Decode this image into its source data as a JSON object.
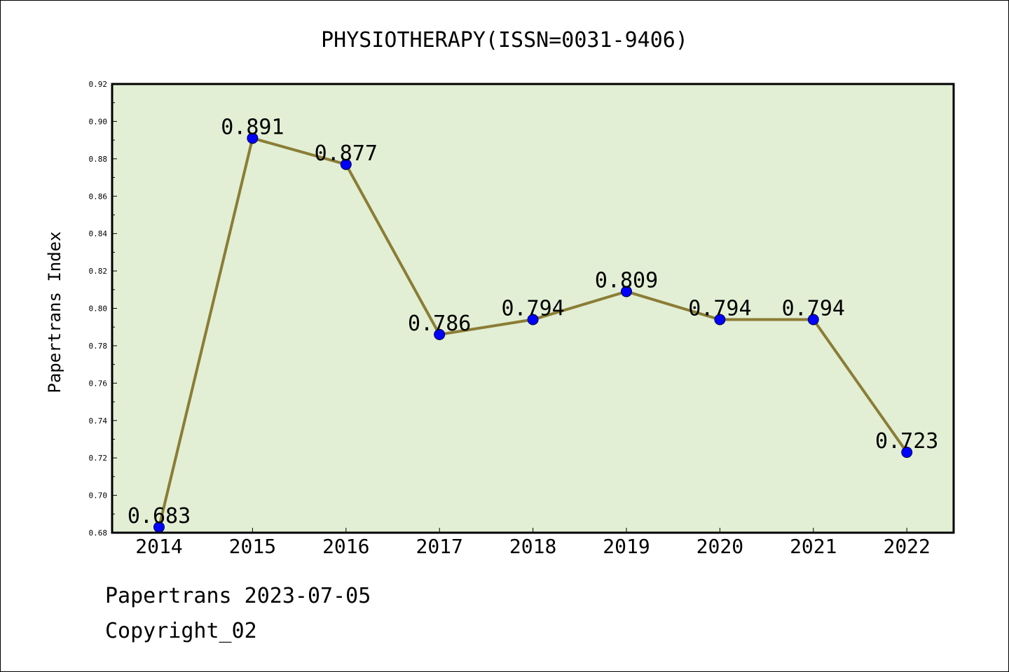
{
  "chart_data": {
    "type": "line",
    "title": "PHYSIOTHERAPY(ISSN=0031-9406)",
    "xlabel": "",
    "ylabel": "Papertrans Index",
    "categories": [
      "2014",
      "2015",
      "2016",
      "2017",
      "2018",
      "2019",
      "2020",
      "2021",
      "2022"
    ],
    "series": [
      {
        "values": [
          0.683,
          0.891,
          0.877,
          0.786,
          0.794,
          0.809,
          0.794,
          0.794,
          0.723
        ],
        "data_labels": [
          "0.683",
          "0.891",
          "0.877",
          "0.786",
          "0.794",
          "0.809",
          "0.794",
          "0.794",
          "0.723"
        ]
      }
    ],
    "ylim": [
      0.68,
      0.92
    ],
    "yticks": [
      "0.68",
      "0.70",
      "0.72",
      "0.74",
      "0.76",
      "0.78",
      "0.80",
      "0.82",
      "0.84",
      "0.86",
      "0.88",
      "0.90",
      "0.92"
    ],
    "grid": false,
    "colors": {
      "plot_background": "#e2efd5",
      "line": "#8b7d35",
      "marker": "#0000ff"
    }
  },
  "footer": {
    "line1": "Papertrans 2023-07-05",
    "line2": "Copyright_02"
  }
}
